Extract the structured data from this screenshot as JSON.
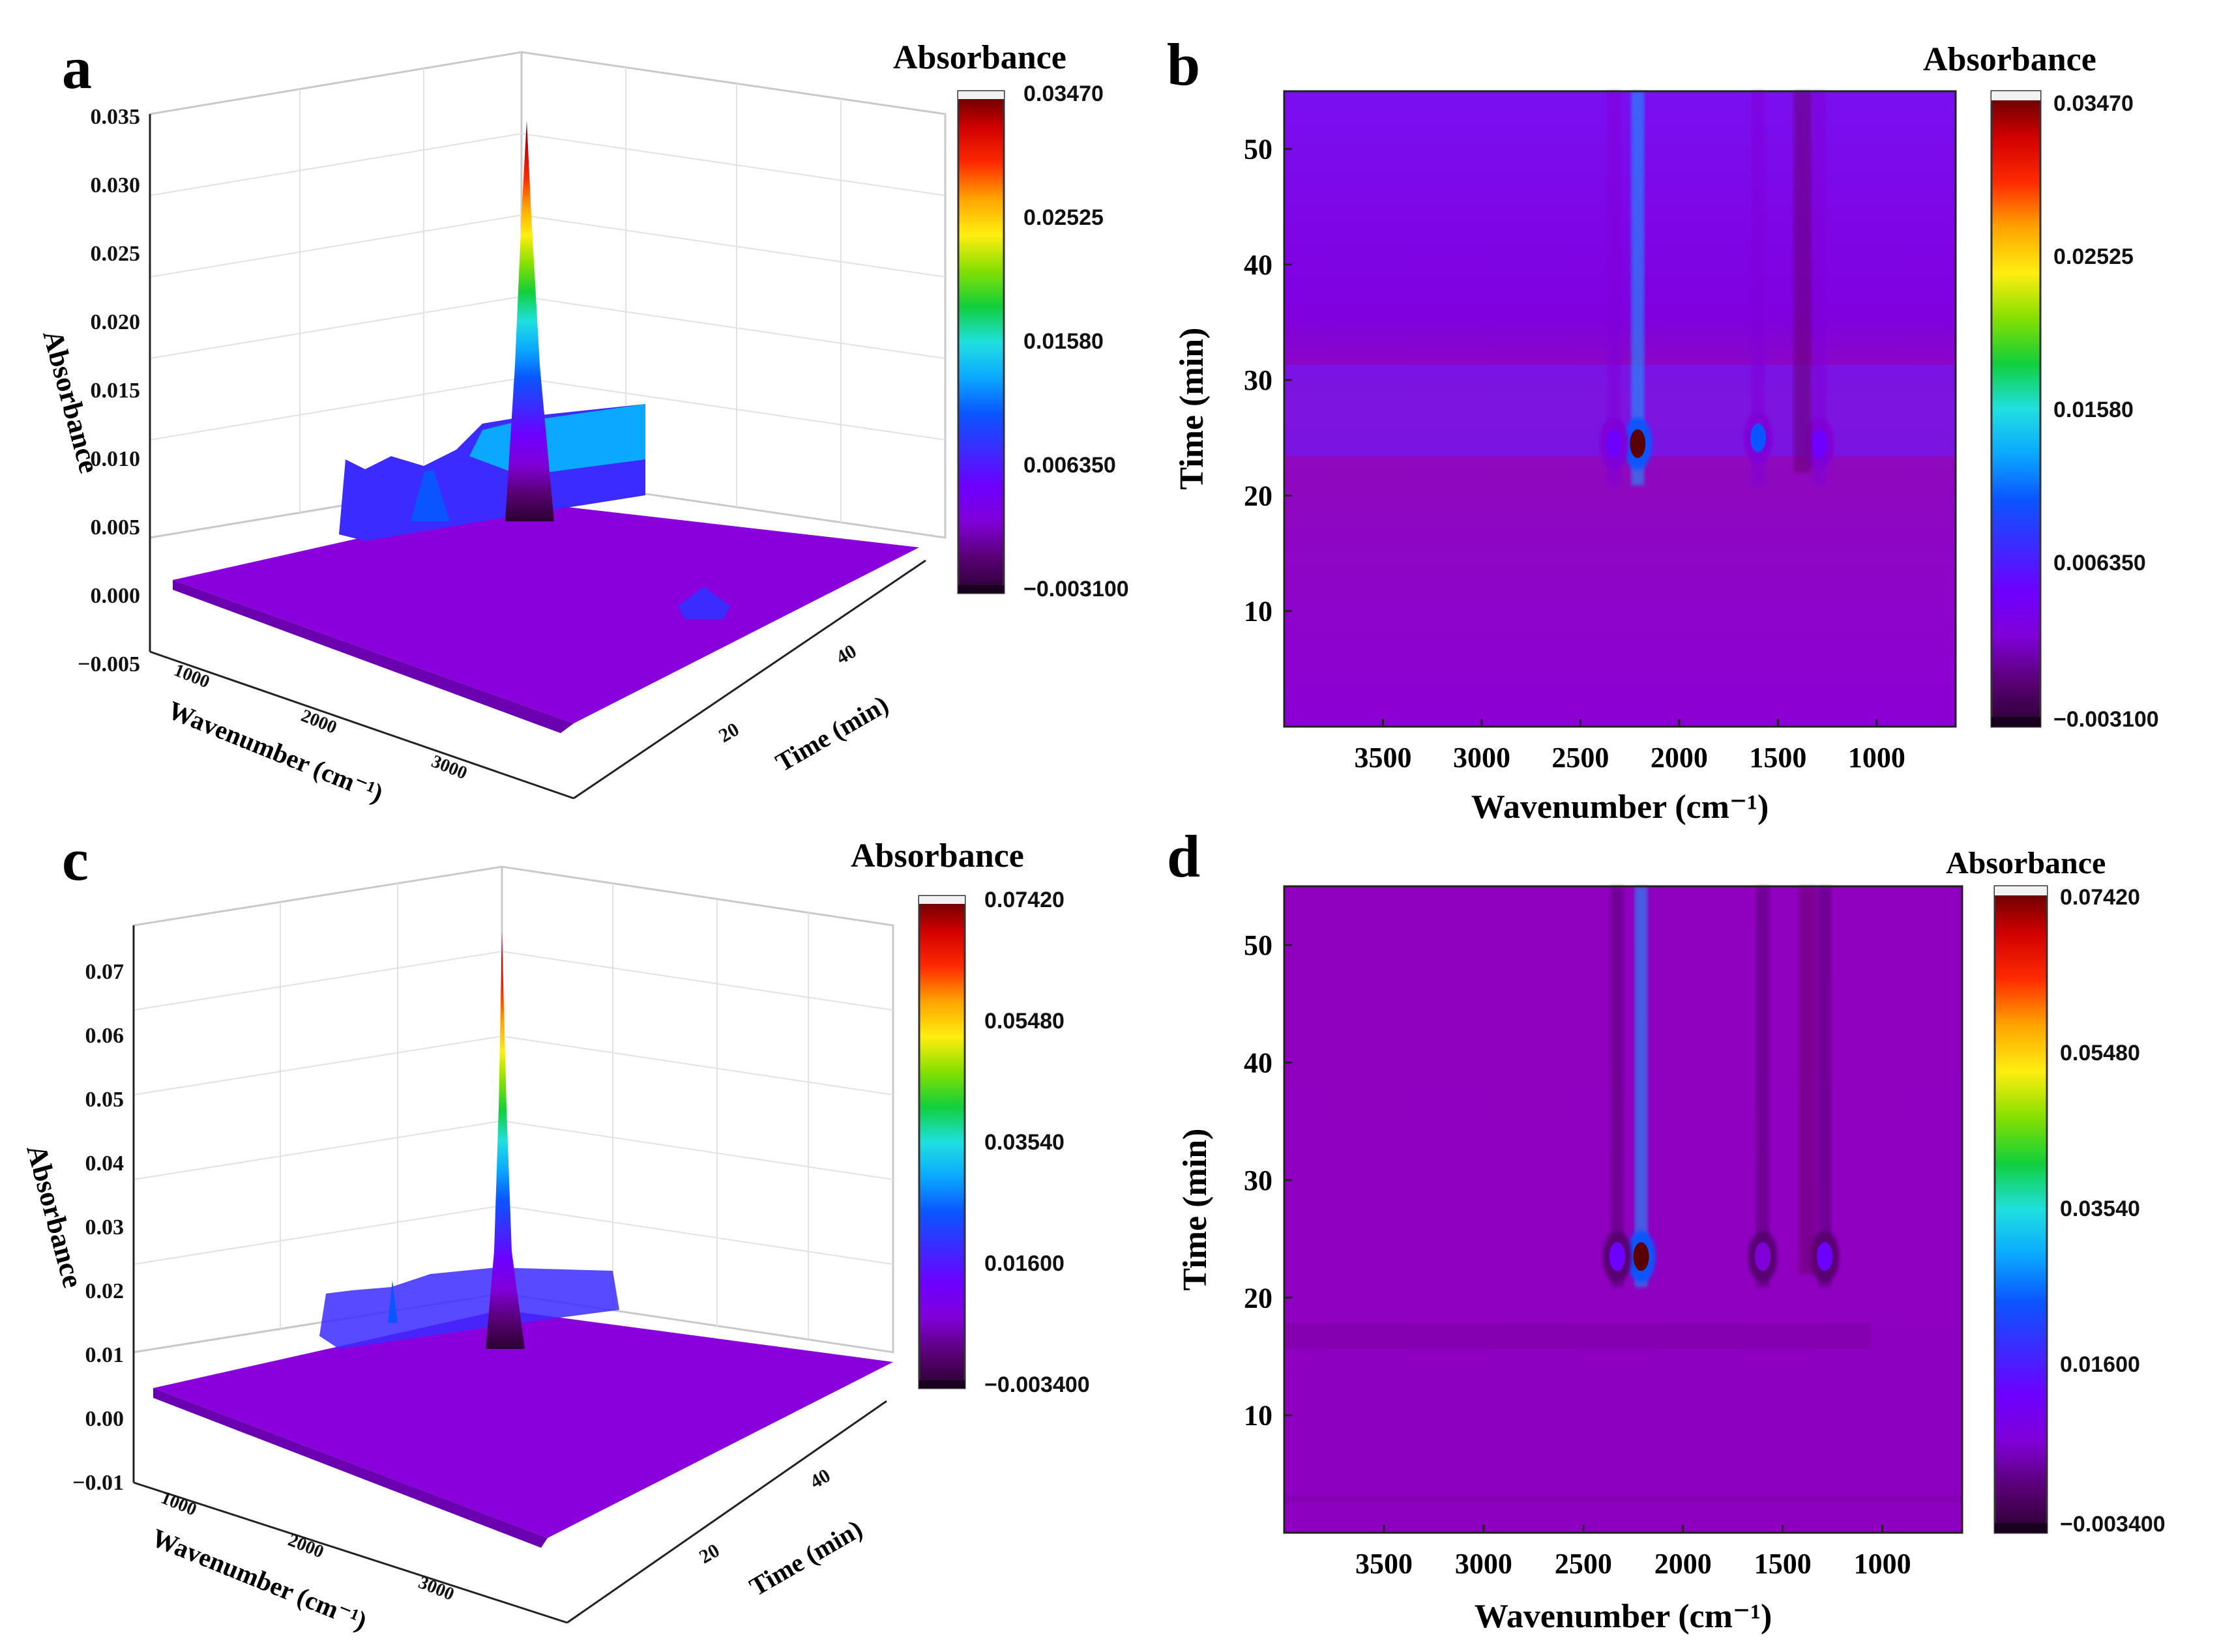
{
  "figure": {
    "panel_labels": [
      "a",
      "b",
      "c",
      "d"
    ]
  },
  "colormap": [
    "#2a0030",
    "#5a0075",
    "#8000d8",
    "#6d00ff",
    "#3b2bff",
    "#0a55ff",
    "#0aa8ff",
    "#20e0e0",
    "#10cf3c",
    "#86e000",
    "#ffee10",
    "#ffa300",
    "#ff2a00",
    "#cf0000",
    "#5a0000"
  ],
  "chart_data": [
    {
      "panel": "a",
      "type": "surface3d",
      "title": "Absorbance",
      "zlabel": "Absorbance",
      "xlabel": "Wavenumber (cm⁻¹)",
      "ylabel": "Time (min)",
      "z_ticks": [
        "0.035",
        "0.030",
        "0.025",
        "0.020",
        "0.015",
        "0.010",
        "0.005",
        "0.000",
        "−0.005"
      ],
      "z_range": [
        -0.005,
        0.035
      ],
      "x_ticks": [
        "1000",
        "2000",
        "3000"
      ],
      "y_ticks": [
        "20",
        "40"
      ],
      "colorbar": {
        "ticks": [
          "0.03470",
          "0.02525",
          "0.01580",
          "0.006350",
          "−0.003100"
        ],
        "range": [
          -0.0031,
          0.0347
        ]
      },
      "peaks": [
        {
          "wavenumber": 2200,
          "time": 25,
          "absorbance": 0.0347
        },
        {
          "wavenumber": 1600,
          "time": 25,
          "absorbance": 0.0125
        },
        {
          "wavenumber": 2300,
          "time": 25,
          "absorbance": 0.009
        },
        {
          "wavenumber": 1300,
          "time": 25,
          "absorbance": 0.0055
        }
      ]
    },
    {
      "panel": "b",
      "type": "heatmap",
      "title": "Absorbance",
      "xlabel": "Wavenumber (cm⁻¹)",
      "ylabel": "Time (min)",
      "x_ticks": [
        "3500",
        "3000",
        "2500",
        "2000",
        "1500",
        "1000"
      ],
      "y_ticks": [
        "50",
        "40",
        "30",
        "20",
        "10"
      ],
      "xlim": [
        4000,
        600
      ],
      "ylim": [
        0,
        55
      ],
      "colorbar": {
        "ticks": [
          "0.03470",
          "0.02525",
          "0.01580",
          "0.006350",
          "−0.003100"
        ],
        "range": [
          -0.0031,
          0.0347
        ]
      },
      "features": [
        {
          "wavenumber": 2210,
          "time": 24.5,
          "absorbance": 0.0347
        },
        {
          "wavenumber": 2330,
          "time": 24.5,
          "absorbance": 0.006
        },
        {
          "wavenumber": 1600,
          "time": 25,
          "absorbance": 0.0115
        },
        {
          "wavenumber": 1290,
          "time": 24.5,
          "absorbance": 0.006
        }
      ]
    },
    {
      "panel": "c",
      "type": "surface3d",
      "title": "Absorbance",
      "zlabel": "Absorbance",
      "xlabel": "Wavenumber (cm⁻¹)",
      "ylabel": "Time (min)",
      "z_ticks": [
        "0.07",
        "0.06",
        "0.05",
        "0.04",
        "0.03",
        "0.02",
        "0.01",
        "0.00",
        "−0.01"
      ],
      "z_range": [
        -0.01,
        0.075
      ],
      "x_ticks": [
        "1000",
        "2000",
        "3000"
      ],
      "y_ticks": [
        "20",
        "40"
      ],
      "colorbar": {
        "ticks": [
          "0.07420",
          "0.05480",
          "0.03540",
          "0.01600",
          "−0.003400"
        ],
        "range": [
          -0.0034,
          0.0742
        ]
      },
      "peaks": [
        {
          "wavenumber": 2200,
          "time": 23,
          "absorbance": 0.0742
        },
        {
          "wavenumber": 1600,
          "time": 23,
          "absorbance": 0.011
        },
        {
          "wavenumber": 2300,
          "time": 23,
          "absorbance": 0.018
        },
        {
          "wavenumber": 1300,
          "time": 23,
          "absorbance": 0.006
        }
      ]
    },
    {
      "panel": "d",
      "type": "heatmap",
      "title": "Absorbance",
      "xlabel": "Wavenumber (cm⁻¹)",
      "ylabel": "Time (min)",
      "x_ticks": [
        "3500",
        "3000",
        "2500",
        "2000",
        "1500",
        "1000"
      ],
      "y_ticks": [
        "50",
        "40",
        "30",
        "20",
        "10"
      ],
      "xlim": [
        4000,
        600
      ],
      "ylim": [
        0,
        55
      ],
      "colorbar": {
        "ticks": [
          "0.07420",
          "0.05480",
          "0.03540",
          "0.01600",
          "−0.003400"
        ],
        "range": [
          -0.0034,
          0.0742
        ]
      },
      "features": [
        {
          "wavenumber": 2210,
          "time": 23.5,
          "absorbance": 0.0742
        },
        {
          "wavenumber": 2330,
          "time": 23.5,
          "absorbance": 0.012
        },
        {
          "wavenumber": 1600,
          "time": 23.5,
          "absorbance": 0.008
        },
        {
          "wavenumber": 1290,
          "time": 23.5,
          "absorbance": 0.012
        }
      ]
    }
  ]
}
